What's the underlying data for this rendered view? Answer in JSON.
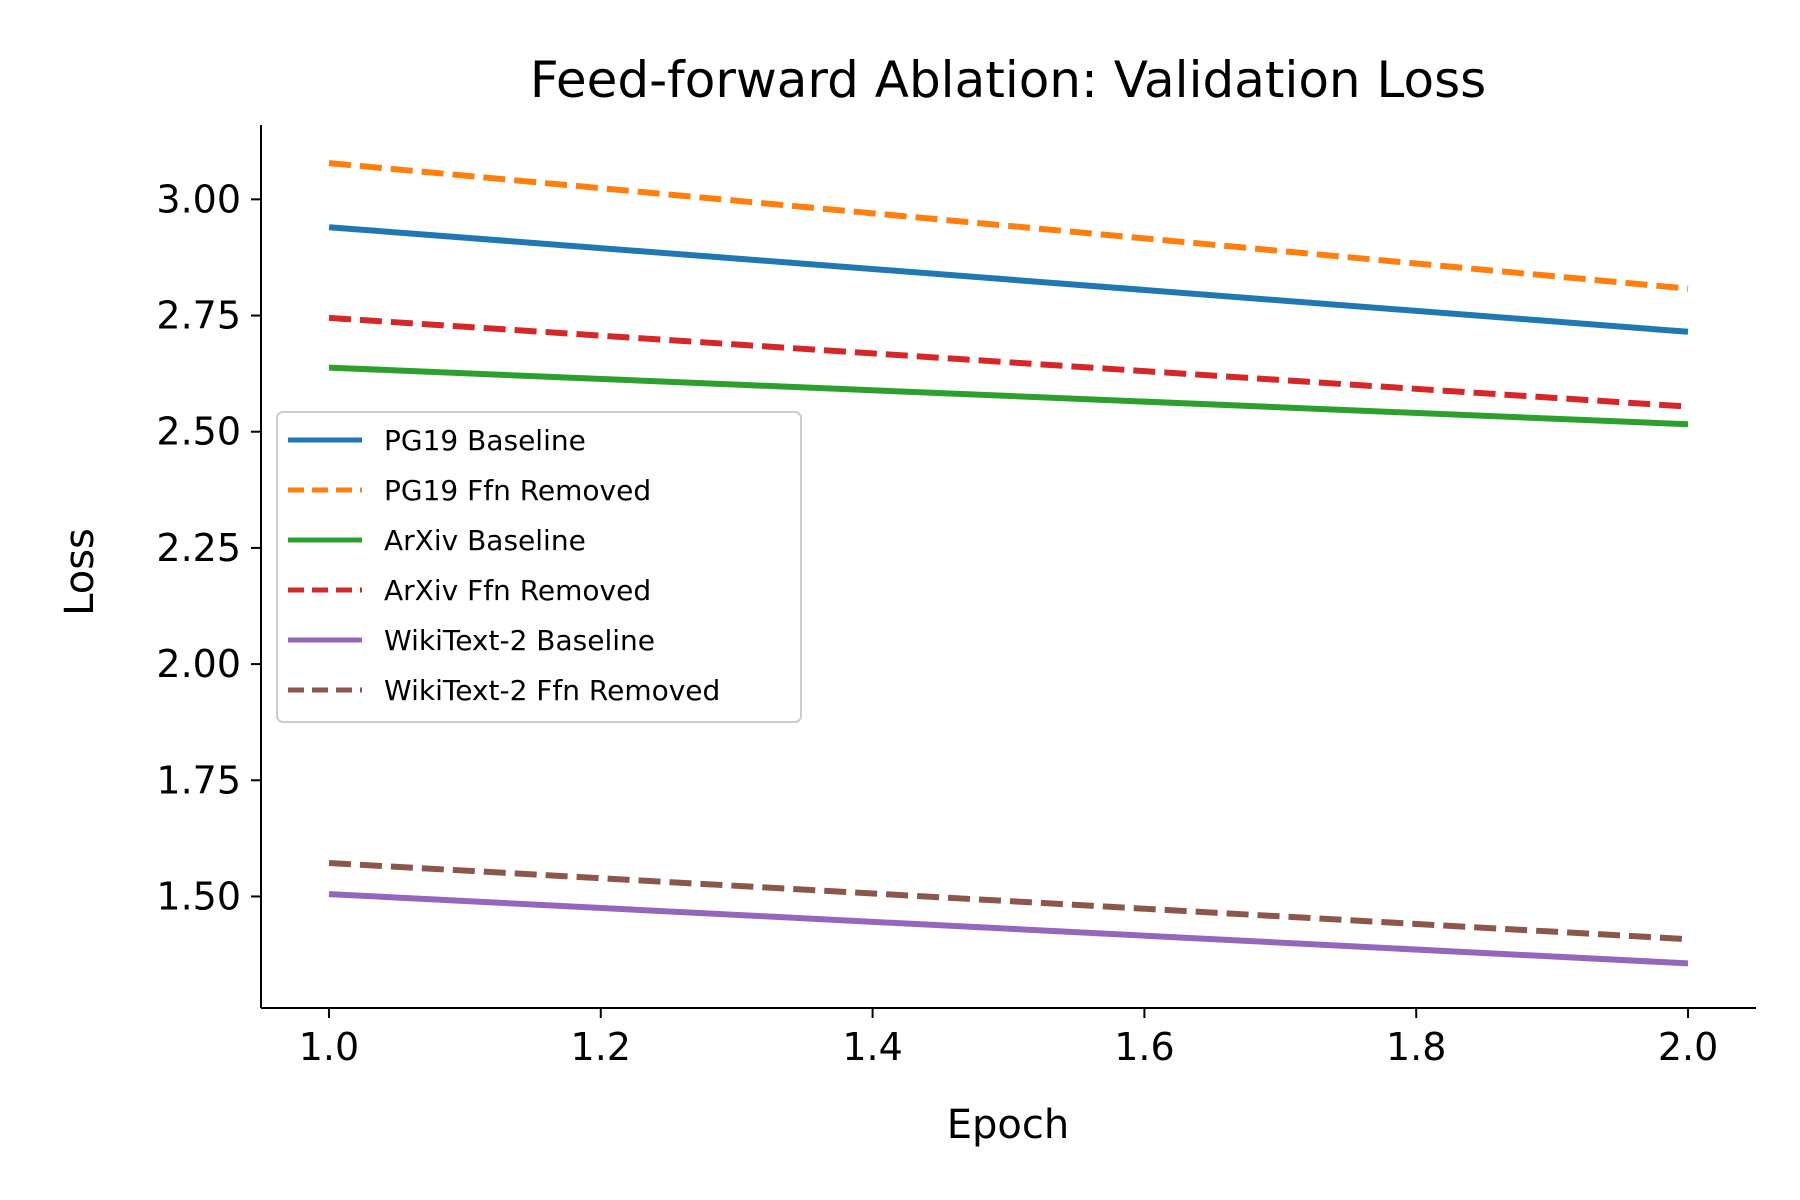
{
  "chart_data": {
    "type": "line",
    "title": "Feed-forward Ablation: Validation Loss",
    "xlabel": "Epoch",
    "ylabel": "Loss",
    "x": [
      1.0,
      2.0
    ],
    "xlim": [
      0.95,
      2.05
    ],
    "ylim": [
      1.26,
      3.16
    ],
    "xticks": [
      "1.0",
      "1.2",
      "1.4",
      "1.6",
      "1.8",
      "2.0"
    ],
    "yticks": [
      "1.50",
      "1.75",
      "2.00",
      "2.25",
      "2.50",
      "2.75",
      "3.00"
    ],
    "grid": false,
    "legend_position": "center-left",
    "series": [
      {
        "name": "PG19 Baseline",
        "values": [
          2.94,
          2.715
        ],
        "color": "#1f77b4",
        "dash": "solid"
      },
      {
        "name": "PG19 Ffn Removed",
        "values": [
          3.078,
          2.808
        ],
        "color": "#ff7f0e",
        "dash": "dashed"
      },
      {
        "name": "ArXiv Baseline",
        "values": [
          2.638,
          2.516
        ],
        "color": "#2ca02c",
        "dash": "solid"
      },
      {
        "name": "ArXiv Ffn Removed",
        "values": [
          2.745,
          2.554
        ],
        "color": "#d62728",
        "dash": "dashed"
      },
      {
        "name": "WikiText-2 Baseline",
        "values": [
          1.505,
          1.356
        ],
        "color": "#9467bd",
        "dash": "solid"
      },
      {
        "name": "WikiText-2 Ffn Removed",
        "values": [
          1.572,
          1.408
        ],
        "color": "#8c564b",
        "dash": "dashed"
      }
    ]
  }
}
